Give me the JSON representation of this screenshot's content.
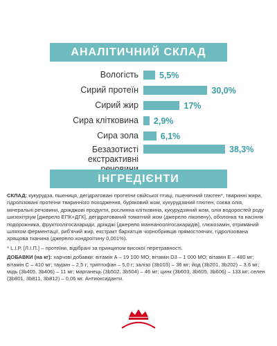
{
  "chart_data": {
    "type": "bar",
    "orientation": "horizontal",
    "title": "АНАЛІТИЧНИЙ СКЛАД",
    "categories": [
      "Вологість",
      "Сирий протеїн",
      "Сирий жир",
      "Сира клітковина",
      "Сира зола",
      "Безазотисті екстрактивні речовини"
    ],
    "values": [
      5.5,
      30.0,
      17,
      2.9,
      6.1,
      38.3
    ],
    "value_labels": [
      "5,5%",
      "30,0%",
      "17%",
      "2,9%",
      "6,1%",
      "38,3%"
    ],
    "color": "#6ab8bd"
  },
  "ingredients": {
    "title": "ІНГРЕДІЄНТИ",
    "composition_label": "СКЛАД:",
    "composition_text": "кукурудза, пшениця, дегідратовані протеїни свійської птиці, пшеничний глютен*, тваринні жири, гідролізовані протеїни тваринного походження, буряковий жом, кукурудзяний глютен, соєва олія, мінеральні речовини, дріжджові продукти, рослинна клітковина, кукурудзяний жом, олія водоростей роду шизохітріум [джерело ЕПК+ДГК], дегідратований томатний жом (джерело лікопену), оболонка та насіння подорожника, фруктоолігосахариди, дріжджі [джерело маннаноолігосахаридів], глюкозамін, отриманий шляхом ферментації, риб'ячий жир, екстракт бархатців чорнобривців прямостоячих, гідролізована хрящова тканина (джерело хондроїтину 0,001%).",
    "footnote": "* L.I.P. [Л.І.П.] – протеїни, відібрані за принципом високої перетравності.",
    "additives_label": "ДОБАВКИ (на кг):",
    "additives_text": "харчові добавки: вітамін A – 19 100 МО; вітамін D3 – 1 000 МО; вітамін E – 480 мг; вітамін C – 410 мг; таурин – 2,5 г; триптофан – 5,0 г; залізо (3b103) – 36 мг; йод (3b201, 3b202) – 3,6 мг; мідь (3b405, 3b406) – 11 мг; марганець (3b502, 3b504) – 46 мг; цинк (3b603, 3b605, 3b606) – 133 мг; селен (3b801, 3b811, 3b812) – 0,06 мг. Антиоксиданти."
  }
}
